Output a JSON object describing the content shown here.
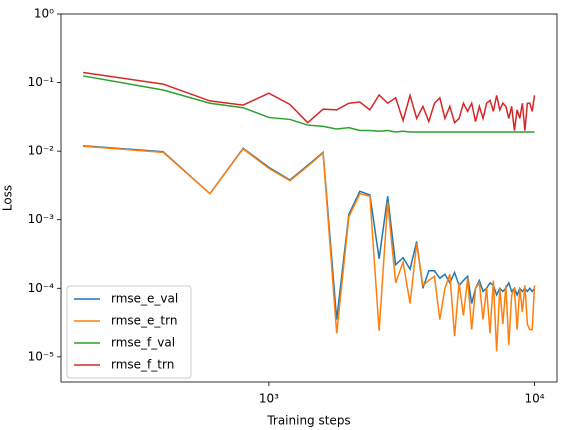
{
  "chart_data": {
    "type": "line",
    "xlabel": "Training steps",
    "ylabel": "Loss",
    "xscale": "log",
    "yscale": "log",
    "legend": "lower left",
    "x": [
      200,
      400,
      600,
      800,
      1000,
      1200,
      1400,
      1600,
      1800,
      2000,
      2200,
      2400,
      2600,
      2800,
      3000,
      3200,
      3400,
      3600,
      3800,
      4000,
      4200,
      4400,
      4600,
      4800,
      5000,
      5200,
      5400,
      5600,
      5800,
      6000,
      6200,
      6400,
      6600,
      6800,
      7000,
      7200,
      7400,
      7600,
      7800,
      8000,
      8200,
      8400,
      8600,
      8800,
      9000,
      9200,
      9400,
      9600,
      9800,
      10000
    ],
    "series": [
      {
        "name": "rmse_e_val",
        "color": "#1f77b4",
        "values": [
          0.012,
          0.0098,
          0.0024,
          0.011,
          0.0058,
          0.0038,
          0.0062,
          0.0096,
          3.5e-05,
          0.0012,
          0.0026,
          0.0023,
          0.00027,
          0.0022,
          0.00022,
          0.00028,
          0.00019,
          0.00048,
          0.0001,
          0.00018,
          0.00018,
          0.00014,
          0.00016,
          0.00012,
          0.00017,
          0.00011,
          0.00013,
          0.00015,
          6e-05,
          0.0001,
          0.00013,
          9e-05,
          0.0001,
          0.00012,
          0.00011,
          8e-05,
          0.0001,
          9e-05,
          0.0001,
          0.00012,
          9e-05,
          0.0001,
          8e-05,
          0.0001,
          9e-05,
          0.0001,
          9e-05,
          0.0001,
          9e-05,
          0.0001
        ]
      },
      {
        "name": "rmse_e_trn",
        "color": "#ff7f0e",
        "values": [
          0.0118,
          0.0096,
          0.0024,
          0.0108,
          0.0056,
          0.0037,
          0.006,
          0.0094,
          2.2e-05,
          0.0011,
          0.0024,
          0.0022,
          2.4e-05,
          0.0018,
          0.00012,
          0.00024,
          6e-05,
          0.00045,
          0.00011,
          0.00013,
          0.00015,
          3.5e-05,
          0.0001,
          0.00016,
          2e-05,
          0.00012,
          4e-05,
          0.00014,
          2.5e-05,
          0.0001,
          0.00012,
          3.5e-05,
          0.0001,
          2.2e-05,
          0.00013,
          1.2e-05,
          0.0001,
          3e-05,
          0.00011,
          1.5e-05,
          7.8e-05,
          0.0001,
          2.5e-05,
          0.0001,
          4.5e-05,
          0.00011,
          3e-05,
          2.5e-05,
          2.5e-05,
          0.00011
        ]
      },
      {
        "name": "rmse_f_val",
        "color": "#2ca02c",
        "values": [
          0.125,
          0.078,
          0.05,
          0.043,
          0.031,
          0.029,
          0.024,
          0.023,
          0.021,
          0.022,
          0.02,
          0.02,
          0.0195,
          0.02,
          0.019,
          0.0195,
          0.019,
          0.019,
          0.019,
          0.019,
          0.019,
          0.019,
          0.019,
          0.019,
          0.019,
          0.019,
          0.019,
          0.019,
          0.019,
          0.019,
          0.019,
          0.019,
          0.019,
          0.019,
          0.019,
          0.019,
          0.019,
          0.019,
          0.019,
          0.019,
          0.019,
          0.019,
          0.019,
          0.019,
          0.019,
          0.019,
          0.019,
          0.019,
          0.019,
          0.019
        ]
      },
      {
        "name": "rmse_f_trn",
        "color": "#d62728",
        "values": [
          0.14,
          0.095,
          0.054,
          0.047,
          0.07,
          0.048,
          0.026,
          0.041,
          0.04,
          0.05,
          0.052,
          0.04,
          0.066,
          0.05,
          0.06,
          0.028,
          0.065,
          0.03,
          0.045,
          0.027,
          0.05,
          0.06,
          0.03,
          0.045,
          0.026,
          0.03,
          0.05,
          0.038,
          0.05,
          0.027,
          0.045,
          0.03,
          0.05,
          0.055,
          0.038,
          0.065,
          0.04,
          0.05,
          0.045,
          0.03,
          0.045,
          0.02,
          0.04,
          0.03,
          0.05,
          0.02,
          0.05,
          0.05,
          0.038,
          0.065
        ]
      }
    ],
    "xlim": [
      165,
      12150
    ],
    "ylim": [
      4.3e-06,
      1
    ],
    "xticks": [
      {
        "value": 1000,
        "label": "10³"
      },
      {
        "value": 10000,
        "label": "10⁴"
      }
    ],
    "yticks": [
      {
        "value": 1e-05,
        "label": "10⁻⁵"
      },
      {
        "value": 0.0001,
        "label": "10⁻⁴"
      },
      {
        "value": 0.001,
        "label": "10⁻³"
      },
      {
        "value": 0.01,
        "label": "10⁻²"
      },
      {
        "value": 0.1,
        "label": "10⁻¹"
      },
      {
        "value": 1,
        "label": "10⁰"
      }
    ]
  }
}
